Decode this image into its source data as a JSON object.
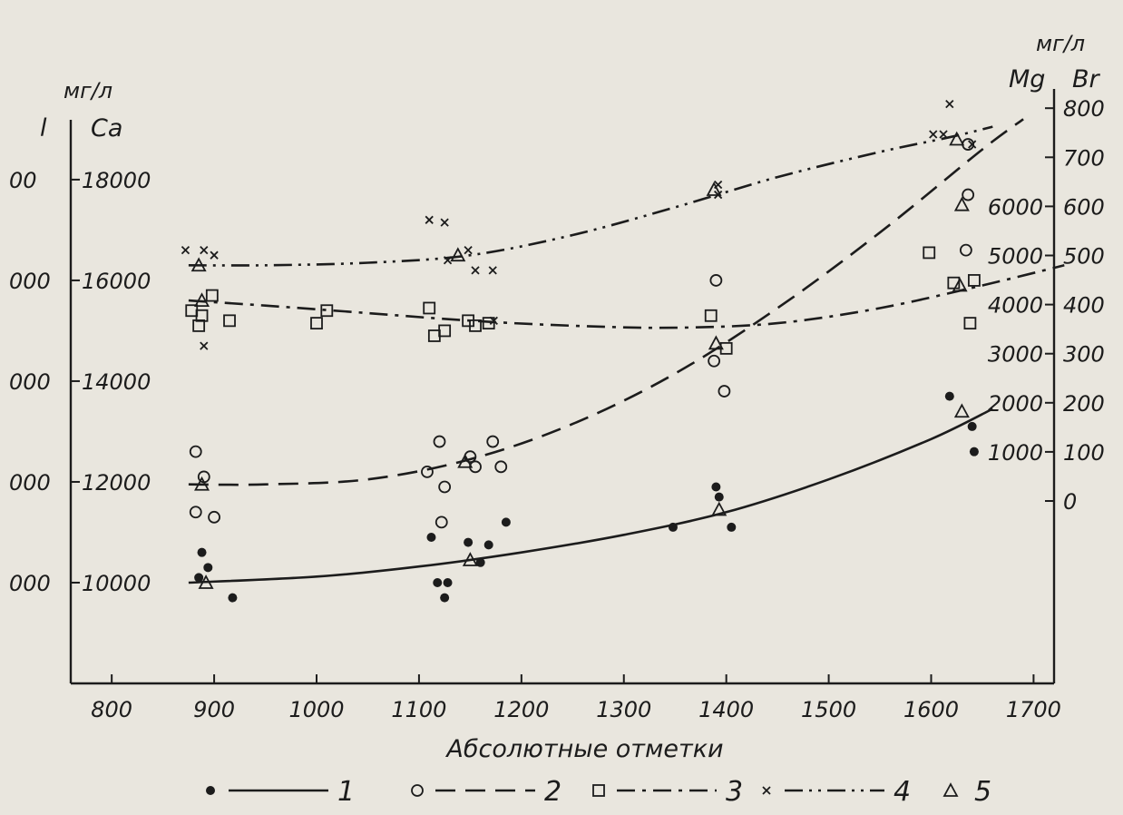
{
  "chart_data": {
    "type": "scatter",
    "xlabel": "Абсолютные отметки",
    "x_ticks": [
      800,
      900,
      1000,
      1100,
      1200,
      1300,
      1400,
      1500,
      1600,
      1700
    ],
    "xlim": [
      760,
      1720
    ],
    "left_axis": {
      "unit": "мг/л",
      "headers": [
        "l",
        "Ca"
      ],
      "ticks": [
        10000,
        12000,
        14000,
        16000,
        18000
      ],
      "tick_labels": [
        "10000",
        "12000",
        "14000",
        "16000",
        "18000"
      ],
      "outer_tick_labels": [
        "000",
        "000",
        "000",
        "000",
        "00"
      ],
      "ylim": [
        8000,
        19800
      ]
    },
    "right_axis": {
      "unit": "мг/л",
      "headers": [
        "Mg",
        "Br"
      ],
      "mg_ticks": [
        1000,
        2000,
        3000,
        4000,
        5000,
        6000
      ],
      "br_ticks": [
        0,
        100,
        200,
        300,
        400,
        500,
        600,
        700,
        800
      ],
      "br_tick_labels": [
        "0",
        "100",
        "200",
        "300",
        "400",
        "500",
        "600",
        "700",
        "800"
      ]
    },
    "series": [
      {
        "name": "1",
        "marker": "filled-circle",
        "line": "solid",
        "points": [
          [
            885,
            10100
          ],
          [
            888,
            10600
          ],
          [
            894,
            10300
          ],
          [
            918,
            9700
          ],
          [
            1112,
            10900
          ],
          [
            1118,
            10000
          ],
          [
            1125,
            9700
          ],
          [
            1128,
            10000
          ],
          [
            1148,
            10800
          ],
          [
            1160,
            10400
          ],
          [
            1168,
            10750
          ],
          [
            1185,
            11200
          ],
          [
            1348,
            11100
          ],
          [
            1390,
            11900
          ],
          [
            1393,
            11700
          ],
          [
            1405,
            11100
          ],
          [
            1618,
            13700
          ],
          [
            1640,
            13100
          ],
          [
            1642,
            12600
          ]
        ],
        "curve": [
          [
            875,
            10000
          ],
          [
            1000,
            10120
          ],
          [
            1100,
            10320
          ],
          [
            1200,
            10600
          ],
          [
            1300,
            10950
          ],
          [
            1400,
            11400
          ],
          [
            1500,
            12050
          ],
          [
            1600,
            12850
          ],
          [
            1660,
            13450
          ]
        ]
      },
      {
        "name": "2",
        "marker": "open-circle",
        "line": "dashed",
        "points": [
          [
            882,
            12600
          ],
          [
            890,
            12100
          ],
          [
            882,
            11400
          ],
          [
            900,
            11300
          ],
          [
            1108,
            12200
          ],
          [
            1120,
            12800
          ],
          [
            1122,
            11200
          ],
          [
            1125,
            11900
          ],
          [
            1150,
            12500
          ],
          [
            1155,
            12300
          ],
          [
            1172,
            12800
          ],
          [
            1180,
            12300
          ],
          [
            1388,
            14400
          ],
          [
            1390,
            16000
          ],
          [
            1398,
            13800
          ],
          [
            1634,
            16600
          ],
          [
            1636,
            18700
          ],
          [
            1636,
            17700
          ]
        ],
        "curve": [
          [
            875,
            11950
          ],
          [
            950,
            11950
          ],
          [
            1050,
            12050
          ],
          [
            1150,
            12450
          ],
          [
            1250,
            13150
          ],
          [
            1350,
            14150
          ],
          [
            1450,
            15450
          ],
          [
            1550,
            16950
          ],
          [
            1650,
            18600
          ],
          [
            1690,
            19200
          ]
        ]
      },
      {
        "name": "3",
        "marker": "open-square",
        "line": "dash-dot",
        "points": [
          [
            878,
            15400
          ],
          [
            885,
            15100
          ],
          [
            888,
            15300
          ],
          [
            898,
            15700
          ],
          [
            915,
            15200
          ],
          [
            1000,
            15150
          ],
          [
            1010,
            15400
          ],
          [
            1110,
            15450
          ],
          [
            1115,
            14900
          ],
          [
            1125,
            15000
          ],
          [
            1148,
            15200
          ],
          [
            1155,
            15100
          ],
          [
            1168,
            15150
          ],
          [
            1385,
            15300
          ],
          [
            1400,
            14650
          ],
          [
            1598,
            16550
          ],
          [
            1622,
            15950
          ],
          [
            1642,
            16000
          ],
          [
            1638,
            15150
          ]
        ],
        "curve": [
          [
            875,
            15600
          ],
          [
            950,
            15500
          ],
          [
            1050,
            15350
          ],
          [
            1150,
            15200
          ],
          [
            1250,
            15100
          ],
          [
            1350,
            15060
          ],
          [
            1450,
            15150
          ],
          [
            1550,
            15450
          ],
          [
            1650,
            15900
          ],
          [
            1730,
            16300
          ]
        ]
      },
      {
        "name": "4",
        "marker": "cross",
        "line": "dash-dot-dot",
        "points": [
          [
            872,
            16600
          ],
          [
            890,
            16600
          ],
          [
            900,
            16500
          ],
          [
            890,
            14700
          ],
          [
            1110,
            17200
          ],
          [
            1125,
            17150
          ],
          [
            1128,
            16400
          ],
          [
            1148,
            16600
          ],
          [
            1155,
            16200
          ],
          [
            1172,
            16200
          ],
          [
            1173,
            15200
          ],
          [
            1392,
            17700
          ],
          [
            1392,
            17900
          ],
          [
            1602,
            18900
          ],
          [
            1612,
            18900
          ],
          [
            1618,
            19500
          ],
          [
            1640,
            18700
          ]
        ],
        "curve": [
          [
            875,
            16300
          ],
          [
            950,
            16300
          ],
          [
            1050,
            16350
          ],
          [
            1150,
            16500
          ],
          [
            1250,
            16900
          ],
          [
            1350,
            17450
          ],
          [
            1450,
            18050
          ],
          [
            1550,
            18550
          ],
          [
            1620,
            18850
          ],
          [
            1660,
            19050
          ]
        ]
      },
      {
        "name": "5",
        "marker": "open-triangle",
        "line": "none",
        "points": [
          [
            885,
            16300
          ],
          [
            888,
            15600
          ],
          [
            888,
            11950
          ],
          [
            892,
            10000
          ],
          [
            1138,
            16500
          ],
          [
            1145,
            12400
          ],
          [
            1150,
            10450
          ],
          [
            1388,
            17800
          ],
          [
            1390,
            14750
          ],
          [
            1393,
            11450
          ],
          [
            1625,
            18800
          ],
          [
            1630,
            17500
          ],
          [
            1628,
            15900
          ],
          [
            1630,
            13400
          ]
        ]
      }
    ],
    "legend_position": "bottom"
  }
}
